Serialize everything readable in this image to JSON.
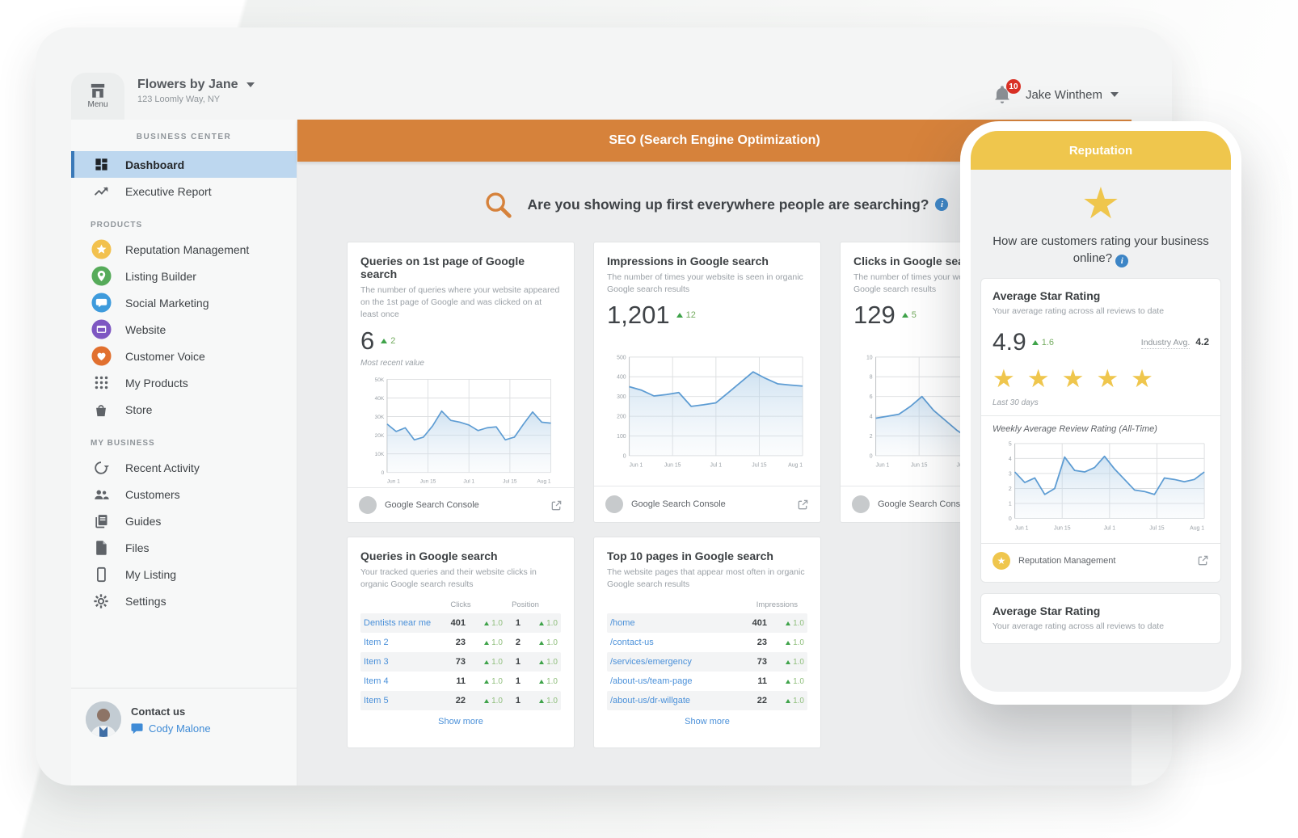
{
  "topbar": {
    "menu_label": "Menu",
    "business_name": "Flowers by Jane",
    "business_address": "123 Loomly Way, NY",
    "notification_count": "10",
    "user_name": "Jake Winthem"
  },
  "sidebar": {
    "section_business_center": "BUSINESS CENTER",
    "nav": [
      {
        "label": "Dashboard"
      },
      {
        "label": "Executive Report"
      }
    ],
    "section_products": "PRODUCTS",
    "products": [
      {
        "label": "Reputation Management"
      },
      {
        "label": "Listing Builder"
      },
      {
        "label": "Social Marketing"
      },
      {
        "label": "Website"
      },
      {
        "label": "Customer Voice"
      },
      {
        "label": "My Products"
      },
      {
        "label": "Store"
      }
    ],
    "section_my_business": "MY BUSINESS",
    "my_business": [
      {
        "label": "Recent Activity"
      },
      {
        "label": "Customers"
      },
      {
        "label": "Guides"
      },
      {
        "label": "Files"
      },
      {
        "label": "My Listing"
      },
      {
        "label": "Settings"
      }
    ],
    "contact_title": "Contact us",
    "contact_name": "Cody Malone"
  },
  "main": {
    "header_title": "SEO (Search Engine Optimization)",
    "question": "Are you showing up first everywhere people are searching?",
    "stat_cards": [
      {
        "title": "Queries on 1st page of Google search",
        "description": "The number of queries where your website appeared on the 1st page of Google and was clicked on at least once",
        "value": "6",
        "delta": "2",
        "note": "Most recent value",
        "source": "Google Search Console"
      },
      {
        "title": "Impressions in Google search",
        "description": "The number of times your website is seen in organic Google search results",
        "value": "1,201",
        "delta": "12",
        "source": "Google Search Console"
      },
      {
        "title": "Clicks in Google search",
        "description": "The number of times your website is clicked in Google search results",
        "value": "129",
        "delta": "5",
        "source": "Google Search Console"
      }
    ],
    "queries_table": {
      "title": "Queries in Google search",
      "description": "Your tracked queries and their website clicks in organic Google search results",
      "col_clicks": "Clicks",
      "col_position": "Position",
      "rows": [
        {
          "label": "Dentists near me",
          "clicks": "401",
          "clicks_delta": "1.0",
          "position": "1",
          "position_delta": "1.0"
        },
        {
          "label": "Item 2",
          "clicks": "23",
          "clicks_delta": "1.0",
          "position": "2",
          "position_delta": "1.0"
        },
        {
          "label": "Item 3",
          "clicks": "73",
          "clicks_delta": "1.0",
          "position": "1",
          "position_delta": "1.0"
        },
        {
          "label": "Item 4",
          "clicks": "11",
          "clicks_delta": "1.0",
          "position": "1",
          "position_delta": "1.0"
        },
        {
          "label": "Item 5",
          "clicks": "22",
          "clicks_delta": "1.0",
          "position": "1",
          "position_delta": "1.0"
        }
      ],
      "show_more": "Show more"
    },
    "pages_table": {
      "title": "Top 10 pages in Google search",
      "description": "The website pages that appear most often in organic Google search results",
      "col_impressions": "Impressions",
      "rows": [
        {
          "label": "/home",
          "impressions": "401",
          "delta": "1.0"
        },
        {
          "label": "/contact-us",
          "impressions": "23",
          "delta": "1.0"
        },
        {
          "label": "/services/emergency",
          "impressions": "73",
          "delta": "1.0"
        },
        {
          "label": "/about-us/team-page",
          "impressions": "11",
          "delta": "1.0"
        },
        {
          "label": "/about-us/dr-willgate",
          "impressions": "22",
          "delta": "1.0"
        }
      ],
      "show_more": "Show more"
    }
  },
  "phone": {
    "header": "Reputation",
    "question": "How are customers rating your business online?",
    "rating_card": {
      "title": "Average Star Rating",
      "subtitle": "Your average rating across all reviews to date",
      "value": "4.9",
      "delta": "1.6",
      "industry_label": "Industry Avg.",
      "industry_value": "4.2",
      "period": "Last 30 days",
      "chart_title": "Weekly Average Review Rating (All-Time)",
      "footer": "Reputation Management"
    },
    "bottom_card": {
      "title": "Average Star Rating",
      "subtitle": "Your average rating across all reviews to date"
    }
  },
  "colors": {
    "accent_orange": "#D6823B",
    "accent_yellow": "#EFC64D",
    "link_blue": "#4A90D9",
    "delta_green": "#3FA34A",
    "active_item_bg": "#BDD7EF",
    "notification_red": "#D93025"
  },
  "chart_data": [
    {
      "type": "area",
      "title": "Queries on 1st page of Google search",
      "x_ticks": [
        "Jun 1",
        "Jun 15",
        "Jul 1",
        "Jul 15",
        "Aug 1"
      ],
      "y_ticks": [
        "50K",
        "40K",
        "30K",
        "20K",
        "10K",
        "0"
      ],
      "ylim": [
        0,
        50
      ],
      "values": [
        26,
        22,
        24,
        17.5,
        19,
        25,
        33,
        28,
        27,
        25.5,
        22.5,
        24,
        24.5,
        17.5,
        19,
        26,
        32.5,
        27,
        26.5
      ]
    },
    {
      "type": "area",
      "title": "Impressions in Google search",
      "x_ticks": [
        "Jun 1",
        "Jun 15",
        "Jul 1",
        "Jul 15",
        "Aug 1"
      ],
      "y_ticks": [
        "500",
        "400",
        "300",
        "200",
        "100",
        "0"
      ],
      "ylim": [
        0,
        500
      ],
      "values": [
        350,
        332,
        303,
        310,
        320,
        250,
        258,
        268,
        320,
        372,
        425,
        392,
        364,
        358,
        353
      ]
    },
    {
      "type": "area",
      "title": "Clicks in Google search",
      "x_ticks": [
        "Jun 1",
        "Jun 15",
        "Jul 1",
        "Jul 15",
        "Aug 1"
      ],
      "y_ticks": [
        "10",
        "8",
        "6",
        "4",
        "2",
        "0"
      ],
      "ylim": [
        0,
        10
      ],
      "values": [
        3.8,
        4,
        4.2,
        5,
        6,
        4.6,
        3.6,
        2.6,
        1.8,
        1.6,
        1.4,
        3,
        3.4,
        3.1,
        3.6,
        4
      ]
    },
    {
      "type": "area",
      "title": "Weekly Average Review Rating (All-Time)",
      "x_ticks": [
        "Jun 1",
        "Jun 15",
        "Jul 1",
        "Jul 15",
        "Aug 1"
      ],
      "y_ticks": [
        "5",
        "4",
        "3",
        "2",
        "1",
        "0"
      ],
      "ylim": [
        0,
        5
      ],
      "values": [
        3.1,
        2.4,
        2.7,
        1.6,
        2,
        4.1,
        3.2,
        3.1,
        3.4,
        4.15,
        3.3,
        2.6,
        1.9,
        1.8,
        1.6,
        2.7,
        2.6,
        2.45,
        2.6,
        3.1
      ]
    }
  ]
}
